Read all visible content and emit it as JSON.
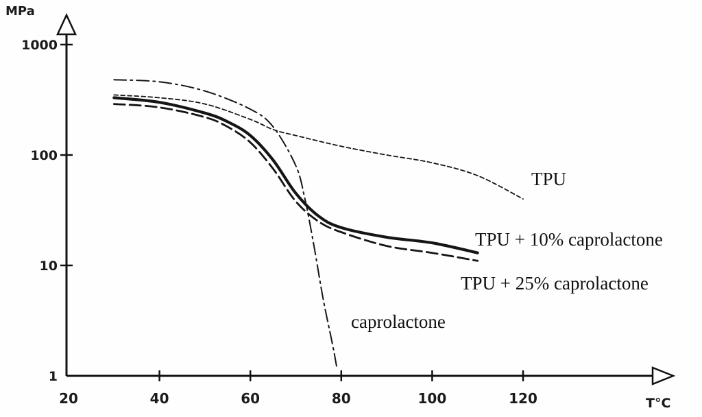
{
  "chart_data": {
    "type": "line",
    "ylabel": "MPa",
    "xlabel": "T°C",
    "x_ticks": [
      "20",
      "40",
      "60",
      "80",
      "100",
      "120"
    ],
    "y_ticks": [
      "1",
      "10",
      "100",
      "1000"
    ],
    "xlim": [
      20,
      125
    ],
    "ylim": [
      1,
      1000
    ],
    "y_scale": "log",
    "grid": false,
    "series": [
      {
        "name": "TPU",
        "style": "short-dashed",
        "x": [
          30,
          40,
          50,
          60,
          65,
          70,
          80,
          90,
          100,
          110,
          120
        ],
        "y": [
          350,
          330,
          290,
          210,
          170,
          150,
          120,
          100,
          85,
          65,
          40
        ]
      },
      {
        "name": "TPU + 10% caprolactone",
        "style": "solid-thick",
        "x": [
          30,
          40,
          50,
          55,
          60,
          65,
          70,
          75,
          80,
          90,
          100,
          110
        ],
        "y": [
          330,
          300,
          240,
          200,
          150,
          90,
          45,
          28,
          22,
          18,
          16,
          13
        ]
      },
      {
        "name": "TPU + 25% caprolactone",
        "style": "long-dashed",
        "x": [
          30,
          40,
          50,
          55,
          60,
          65,
          70,
          75,
          80,
          90,
          100,
          110
        ],
        "y": [
          290,
          270,
          220,
          180,
          130,
          75,
          38,
          25,
          20,
          15,
          13,
          11
        ]
      },
      {
        "name": "caprolactone",
        "style": "dash-dot",
        "x": [
          30,
          40,
          50,
          60,
          65,
          70,
          72,
          74,
          76,
          78,
          79
        ],
        "y": [
          480,
          460,
          380,
          260,
          180,
          80,
          40,
          15,
          5,
          2,
          1.2
        ]
      }
    ],
    "labels": {
      "TPU": "TPU",
      "TPU + 10% caprolactone": "TPU + 10% caprolactone",
      "TPU + 25% caprolactone": "TPU + 25% caprolactone",
      "caprolactone": "caprolactone"
    }
  }
}
